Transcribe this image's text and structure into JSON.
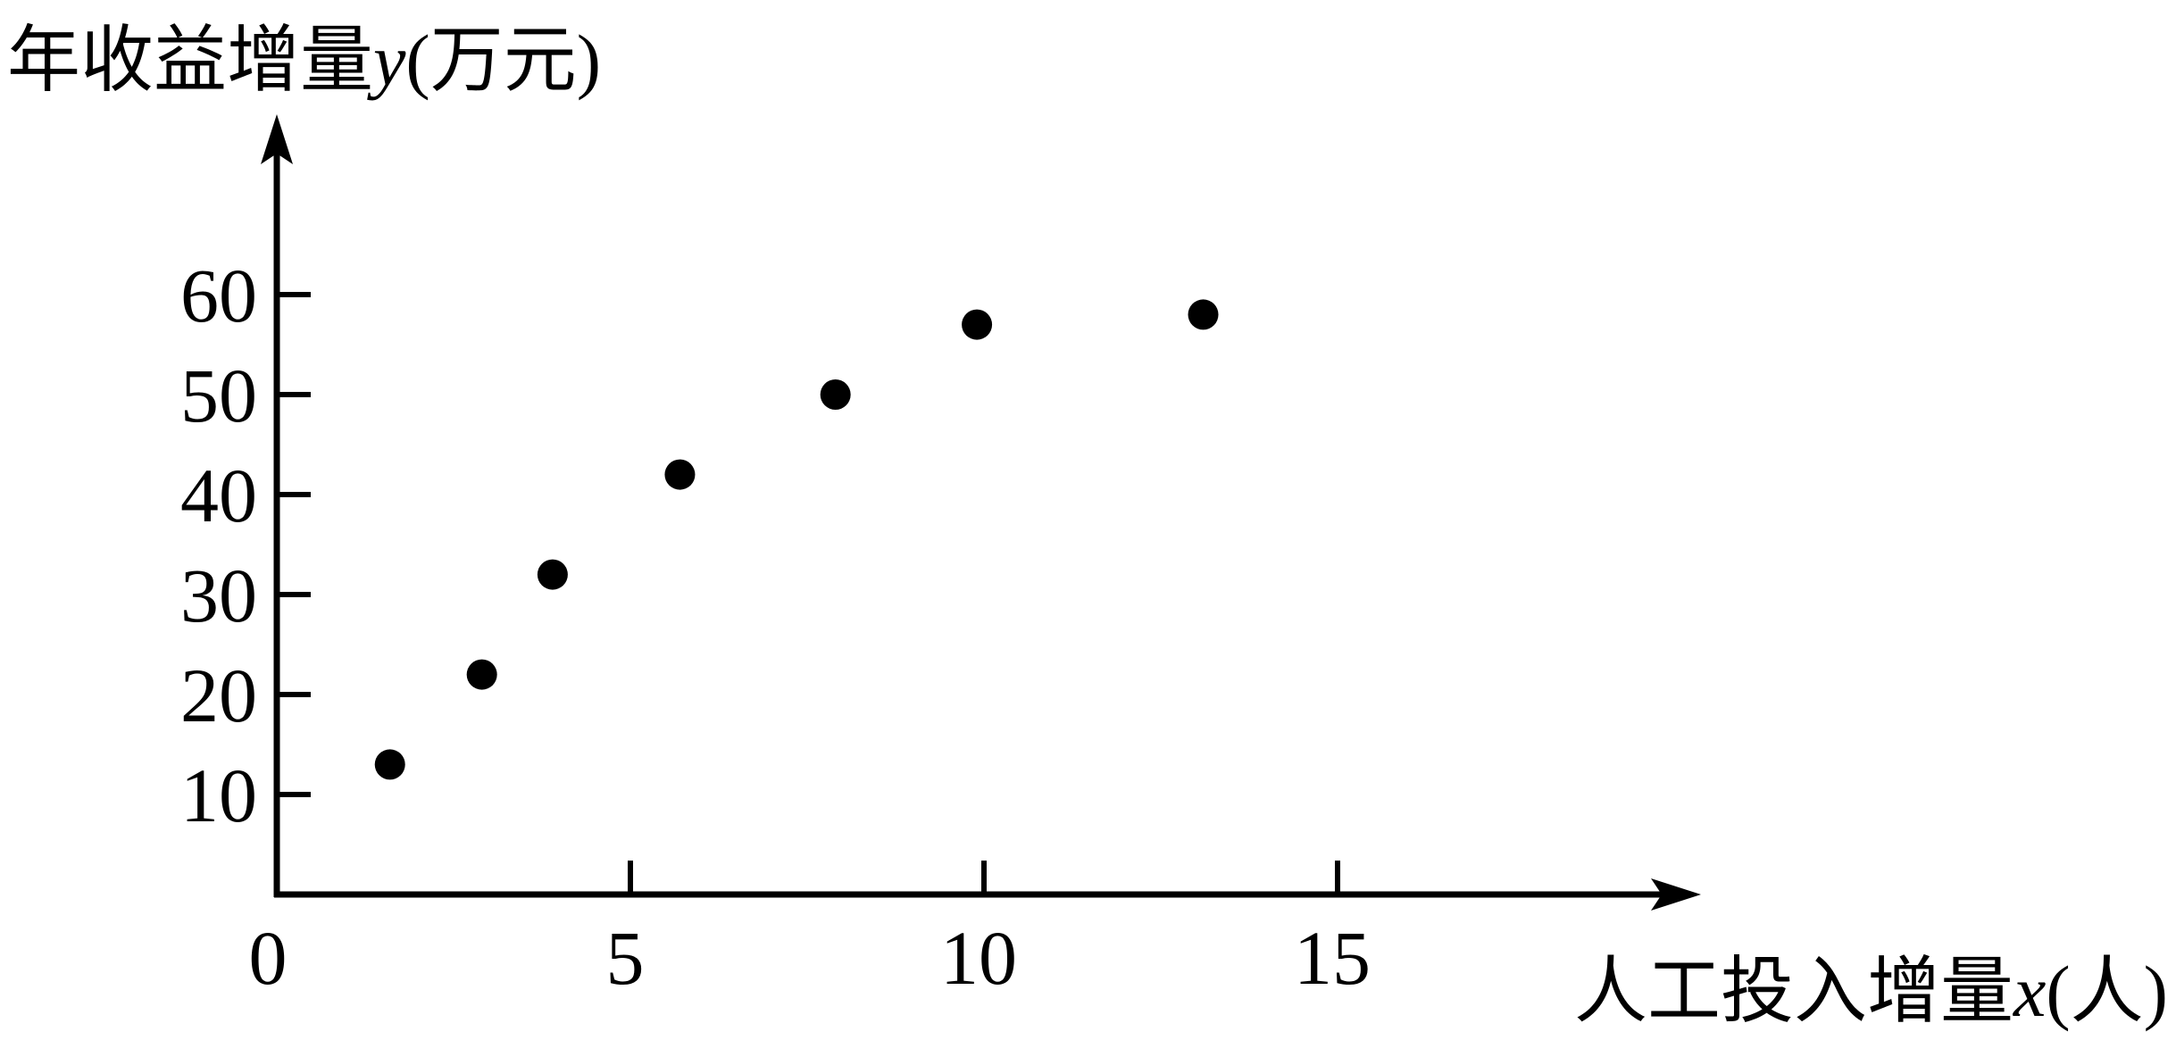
{
  "chart_data": {
    "type": "scatter",
    "title": "",
    "ylabel": {
      "prefix": "年收益增量",
      "variable": "y",
      "unit": "(万元)"
    },
    "xlabel": {
      "prefix": "人工投入增量",
      "variable": "x",
      "unit": "(人)"
    },
    "origin_label": "0",
    "xlim": [
      0,
      20
    ],
    "ylim": [
      0,
      75
    ],
    "x_ticks": [
      5,
      10,
      15
    ],
    "x_tick_labels": [
      "5",
      "10",
      "15"
    ],
    "y_ticks": [
      10,
      20,
      30,
      40,
      50,
      60
    ],
    "y_tick_labels": [
      "10",
      "20",
      "30",
      "40",
      "50",
      "60"
    ],
    "grid": false,
    "legend": "none",
    "points": [
      {
        "x": 1.6,
        "y": 13
      },
      {
        "x": 2.9,
        "y": 22
      },
      {
        "x": 3.9,
        "y": 32
      },
      {
        "x": 5.7,
        "y": 42
      },
      {
        "x": 7.9,
        "y": 50
      },
      {
        "x": 9.9,
        "y": 57
      },
      {
        "x": 13.1,
        "y": 58
      }
    ],
    "point_color": "#000000",
    "axis_color": "#000000"
  }
}
